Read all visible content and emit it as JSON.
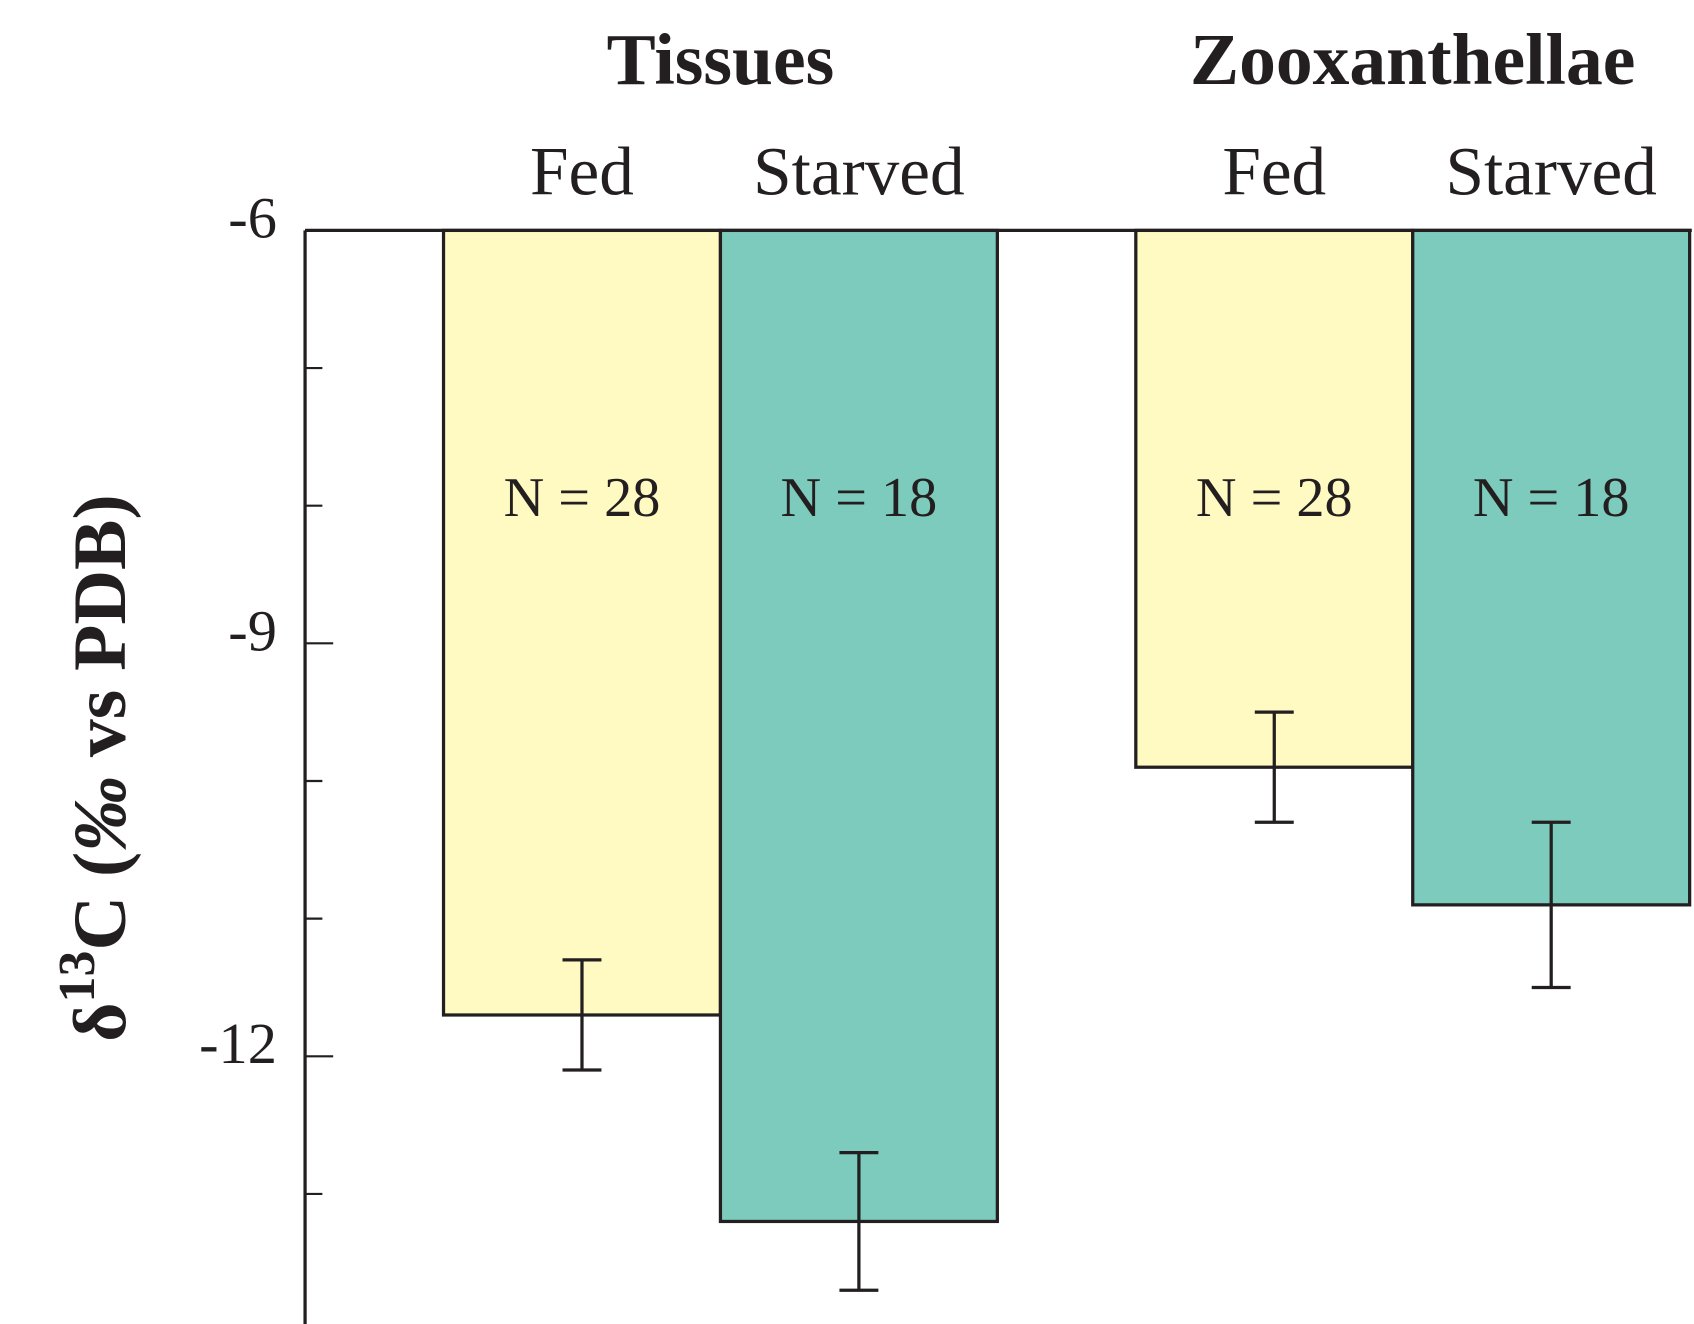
{
  "chart_data": {
    "type": "bar",
    "groups": [
      "Tissues",
      "Zooxanthellae"
    ],
    "ylabel": {
      "symbol": "δ",
      "sup": "13",
      "main": "C (",
      "unit": "‰",
      "rest": " vs PDB)"
    },
    "series": [
      {
        "name": "Fed",
        "color": "#fff9c2",
        "values": [
          -11.7,
          -9.9
        ],
        "errors": [
          0.4,
          0.4
        ],
        "annotations": [
          "N = 28",
          "N = 28"
        ]
      },
      {
        "name": "Starved",
        "color": "#7dcbbd",
        "values": [
          -13.2,
          -10.9
        ],
        "errors": [
          0.5,
          0.6
        ],
        "annotations": [
          "N = 18",
          "N = 18"
        ]
      }
    ],
    "ylim": [
      -14,
      -6
    ],
    "yticks": [
      -6,
      -9,
      -12
    ],
    "yminorticks": [
      -7,
      -8,
      -10,
      -11,
      -13
    ]
  }
}
